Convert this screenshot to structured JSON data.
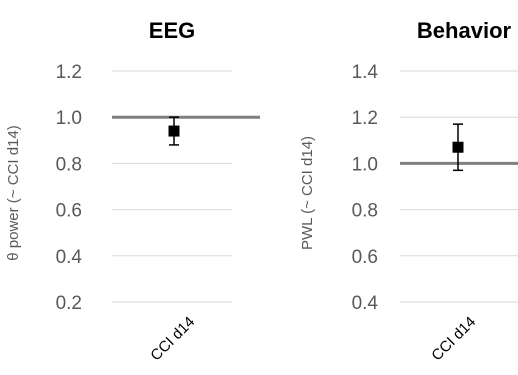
{
  "chart_data": [
    {
      "type": "scatter",
      "title": "EEG",
      "ylabel": "θ power (~ CCI d14)",
      "xlabel": "",
      "categories": [
        "CCI d14"
      ],
      "ylim": [
        0.2,
        1.2
      ],
      "yticks": [
        "0.2",
        "0.4",
        "0.6",
        "0.8",
        "1.0",
        "1.2"
      ],
      "grid": true,
      "reference_line": 1.0,
      "series": [
        {
          "values": [
            0.94
          ],
          "error": [
            0.06
          ]
        }
      ]
    },
    {
      "type": "scatter",
      "title": "Behavior",
      "ylabel": "PWL (~ CCI d14)",
      "xlabel": "",
      "categories": [
        "CCI d14"
      ],
      "ylim": [
        0.4,
        1.4
      ],
      "yticks": [
        "0.4",
        "0.6",
        "0.8",
        "1.0",
        "1.2",
        "1.4"
      ],
      "grid": true,
      "reference_line": 1.0,
      "series": [
        {
          "values": [
            1.07
          ],
          "error": [
            0.1
          ]
        }
      ]
    }
  ],
  "colors": {
    "reference_line": "#7f7f7f",
    "marker": "#000000",
    "grid": "#d9d9d9"
  }
}
